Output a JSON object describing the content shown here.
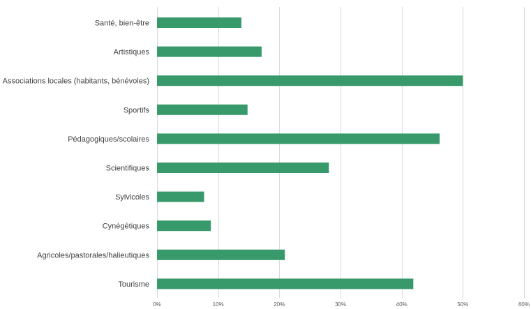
{
  "chart_data": {
    "type": "bar",
    "orientation": "horizontal",
    "title": "",
    "xlabel": "",
    "ylabel": "",
    "categories": [
      "Santé, bien-être",
      "Artistiques",
      "Associations locales (habitants, bénévoles)",
      "Sportifs",
      "Pédagogiques/scolaires",
      "Scientifiques",
      "Sylvicoles",
      "Cynégétiques",
      "Agricoles/pastorales/halieutiques",
      "Tourisme"
    ],
    "values": [
      0.138,
      0.171,
      0.5,
      0.148,
      0.462,
      0.281,
      0.077,
      0.088,
      0.209,
      0.419
    ],
    "xlim": [
      0,
      0.6
    ],
    "ticks": [
      0,
      0.1,
      0.2,
      0.3,
      0.4,
      0.5,
      0.6
    ],
    "tick_labels": [
      "0%",
      "10%",
      "20%",
      "30%",
      "40%",
      "50%",
      "60%"
    ],
    "grid": "vertical",
    "legend": "none",
    "bar_color": "#38996b"
  }
}
